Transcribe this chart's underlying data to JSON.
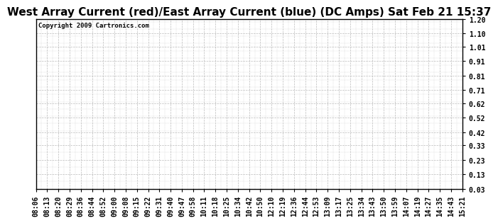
{
  "title": "West Array Current (red)/East Array Current (blue) (DC Amps) Sat Feb 21 15:37",
  "copyright_text": "Copyright 2009 Cartronics.com",
  "yticks": [
    0.03,
    0.13,
    0.23,
    0.33,
    0.42,
    0.52,
    0.62,
    0.71,
    0.81,
    0.91,
    1.01,
    1.1,
    1.2
  ],
  "ymin": 0.03,
  "ymax": 1.2,
  "xtick_labels": [
    "08:06",
    "08:13",
    "08:20",
    "08:29",
    "08:36",
    "08:44",
    "08:52",
    "09:00",
    "09:08",
    "09:15",
    "09:22",
    "09:31",
    "09:40",
    "09:47",
    "09:58",
    "10:11",
    "10:18",
    "10:25",
    "10:34",
    "10:42",
    "10:50",
    "12:10",
    "12:19",
    "12:36",
    "12:44",
    "12:53",
    "13:09",
    "13:17",
    "13:25",
    "13:34",
    "13:43",
    "13:50",
    "13:59",
    "14:07",
    "14:19",
    "14:27",
    "14:35",
    "14:43",
    "15:21"
  ],
  "background_color": "#ffffff",
  "grid_color": "#aaaaaa",
  "border_color": "#000000",
  "title_fontsize": 11,
  "tick_fontsize": 7,
  "copyright_fontsize": 6.5
}
